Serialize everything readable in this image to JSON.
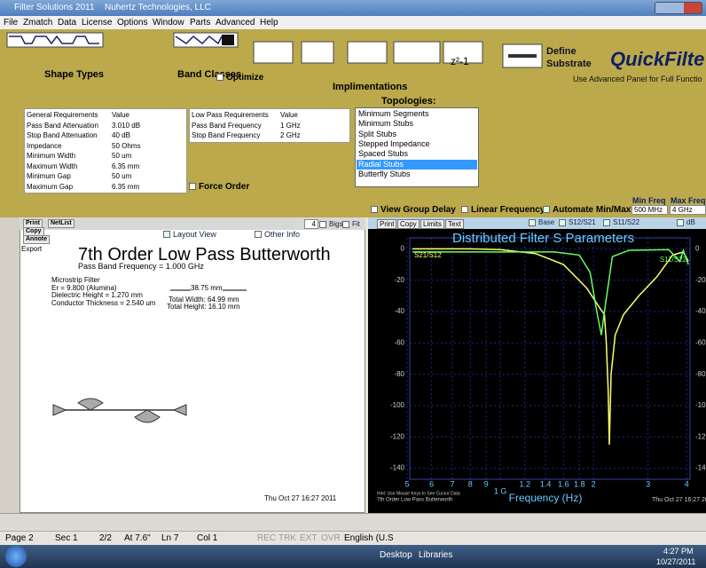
{
  "window": {
    "title": "Filter Solutions 2011",
    "company": "Nuhertz Technologies, LLC"
  },
  "menu": [
    "File",
    "Zmatch",
    "Data",
    "License",
    "Options",
    "Window",
    "Parts",
    "Advanced",
    "Help"
  ],
  "toolbar": {
    "shape_types": "Shape Types",
    "band_classes": "Band Classes",
    "optimize": "Optimize",
    "implementations": "Implimentations",
    "z_transform": "z²-1",
    "define": "Define",
    "substrate": "Substrate",
    "quickfilter": "QuickFilte",
    "advanced_hint": "Use Advanced Panel for Full Functio"
  },
  "topologies": {
    "label": "Topologies:",
    "items": [
      "Minimum Segments",
      "Minimum Stubs",
      "Split Stubs",
      "Stepped Impedance",
      "Spaced Stubs",
      "Radial Stubs",
      "Butterfly Stubs"
    ],
    "selected": 5
  },
  "general_requirements": {
    "headers": [
      "General Requirements",
      "Value"
    ],
    "rows": [
      [
        "Pass Band Attenuation",
        "3.010 dB"
      ],
      [
        "Stop Band Attenuation",
        "40 dB"
      ],
      [
        "Impedance",
        "50 Ohms"
      ],
      [
        "Minimum Width",
        "50 um"
      ],
      [
        "Maximum Width",
        "6.35 mm"
      ],
      [
        "Minimum Gap",
        "50 um"
      ],
      [
        "Maximum Gap",
        "6.35 mm"
      ]
    ]
  },
  "lowpass_requirements": {
    "headers": [
      "Low Pass Requirements",
      "Value"
    ],
    "rows": [
      [
        "Pass Band Frequency",
        "1 GHz"
      ],
      [
        "Stop Band Frequency",
        "2 GHz"
      ]
    ]
  },
  "force_order": "Force Order",
  "options": {
    "view_group_delay": "View Group Delay",
    "linear_frequency": "Linear Frequency",
    "automate": "Automate Min/Max",
    "min_freq_label": "Min Freq",
    "max_freq_label": "Max Freq",
    "min_freq": "500 MHz",
    "max_freq": "4 GHz"
  },
  "layout_panel": {
    "buttons": [
      "Print",
      "NetList",
      "Copy",
      "Annote",
      "Export"
    ],
    "layout_view": "Layout View",
    "other_info": "Other Info",
    "bigs_value": "4",
    "bigs": "Bigs",
    "fit": "Fit",
    "title": "7th Order Low Pass Butterworth",
    "subtitle": "Pass Band Frequency = 1.000 GHz",
    "substrate": [
      "Microstrip Filter",
      "Er = 9.800  (Alumina)",
      "Dielectric Height = 1.270 mm",
      "Conductor Thickness = 2.540 um"
    ],
    "dimension": "38.75 mm",
    "total_width": "Total Width: 64.99 mm",
    "total_height": "Total Height: 16.10 mm",
    "timestamp": "Thu Oct 27 16:27 2011"
  },
  "graph": {
    "buttons": [
      "Print",
      "Copy",
      "Limits",
      "Text"
    ],
    "toggles": [
      "Base",
      "S12/S21",
      "S11/S22",
      "dB"
    ],
    "title": "Distributed Filter S Parameters",
    "xlabel": "Frequency (Hz)",
    "log_x": true,
    "grid": true,
    "xlim": [
      0.51,
      4.1
    ],
    "xticks": [
      {
        "value": 0.5,
        "label": "5"
      },
      {
        "value": 0.6,
        "label": "6"
      },
      {
        "value": 0.7,
        "label": "7"
      },
      {
        "value": 0.8,
        "label": "8"
      },
      {
        "value": 0.9,
        "label": "9"
      },
      {
        "value": 1,
        "label": "1 G"
      },
      1.2,
      1.4,
      1.6,
      1.8,
      2,
      3,
      4
    ],
    "ylim": [
      -147,
      7
    ],
    "yticks": [
      0,
      -20,
      -40,
      -60,
      -80,
      -100,
      -120,
      -140
    ],
    "series": [
      {
        "name": "S21/S12",
        "color": "#ffff66",
        "x": [
          0.52,
          0.8,
          1.0,
          1.3,
          1.6,
          1.9,
          2.1,
          2.17,
          2.2,
          2.23,
          2.25,
          2.28,
          2.35,
          2.5,
          2.8,
          3.2,
          3.6,
          3.9,
          4.05
        ],
        "values": [
          0,
          0,
          -0.5,
          -3,
          -10,
          -25,
          -38,
          -42,
          -60,
          -90,
          -125,
          -80,
          -55,
          -42,
          -30,
          -18,
          -4,
          -2,
          -8
        ]
      },
      {
        "name": "S11/S22",
        "color": "#66ff66",
        "x": [
          0.52,
          1.5,
          1.8,
          1.95,
          2.05,
          2.12,
          2.17,
          2.3,
          2.6,
          3.5,
          3.8,
          3.9,
          4.05
        ],
        "values": [
          -2,
          -2,
          -4,
          -15,
          -40,
          -55,
          -40,
          -5,
          -1,
          -0.5,
          -8,
          -1,
          -10
        ]
      }
    ],
    "hint": "Hint: Use Mouse Keys to See Cursor Data",
    "footer_title": "7th Order Low Pass Butterworth",
    "timestamp": "Thu Oct 27 16:27 20"
  },
  "status_bar": [
    "Page 2",
    "Sec 1",
    "2/2",
    "At 7.6\"",
    "Ln 7",
    "Col 1",
    "REC",
    "TRK",
    "EXT",
    "OVR",
    "English (U.S"
  ],
  "taskbar": {
    "desktop": "Desktop",
    "libraries": "Libraries",
    "time": "4:27 PM",
    "date": "10/27/2011"
  }
}
